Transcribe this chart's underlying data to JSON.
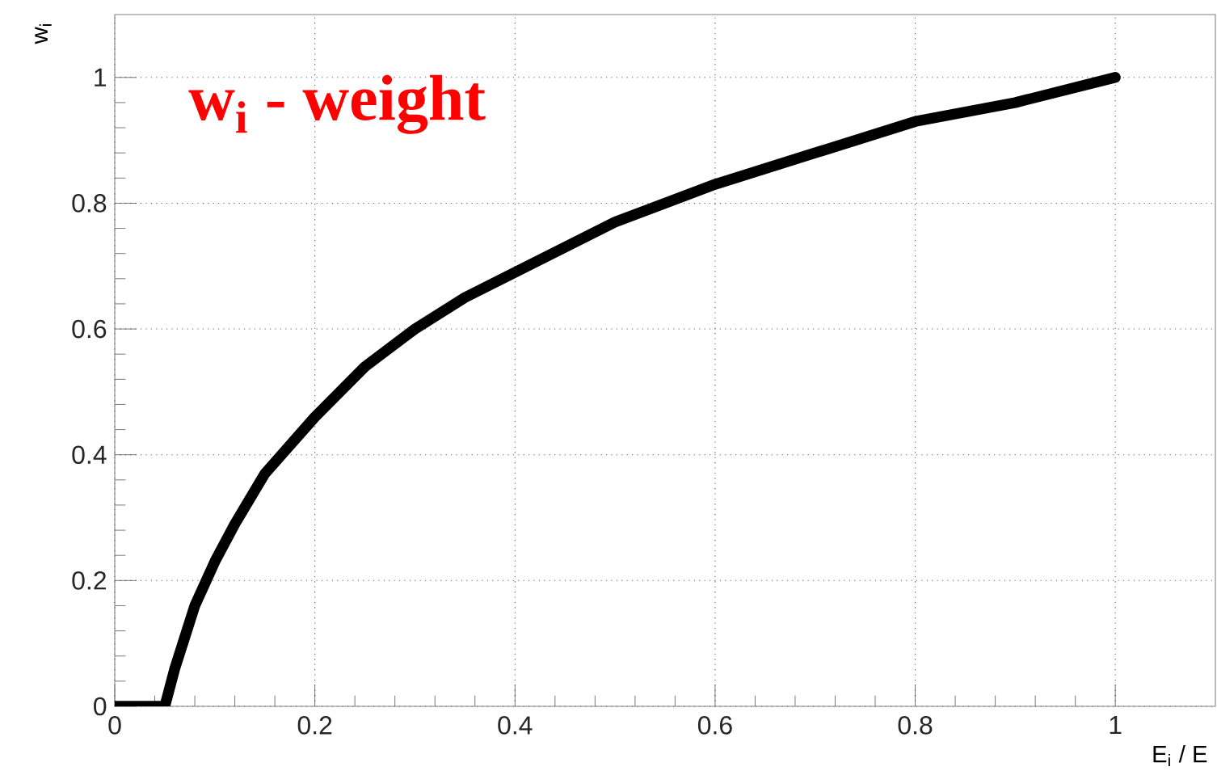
{
  "chart_data": {
    "type": "line",
    "xlabel": "E$_{i}$ / E",
    "ylabel": "w$_{i}$",
    "annotations": [
      "w$_{i}$ - weight"
    ],
    "x": [
      0,
      0.05,
      0.06,
      0.07,
      0.08,
      0.1,
      0.12,
      0.15,
      0.2,
      0.25,
      0.3,
      0.35,
      0.4,
      0.5,
      0.6,
      0.7,
      0.8,
      0.9,
      1
    ],
    "series": [
      {
        "color": "#000000",
        "values": [
          0,
          0,
          0.06,
          0.11,
          0.16,
          0.23,
          0.29,
          0.37,
          0.46,
          0.54,
          0.6,
          0.65,
          0.69,
          0.77,
          0.83,
          0.88,
          0.93,
          0.96,
          1
        ]
      }
    ],
    "xlim": [
      0,
      1.1
    ],
    "ylim": [
      0,
      1.1
    ],
    "xticks": [
      0,
      0.2,
      0.4,
      0.6,
      0.8,
      1
    ],
    "yticks": [
      0,
      0.2,
      0.4,
      0.6,
      0.8,
      1
    ],
    "grid": true,
    "marker": "none",
    "line_style": "solid"
  }
}
